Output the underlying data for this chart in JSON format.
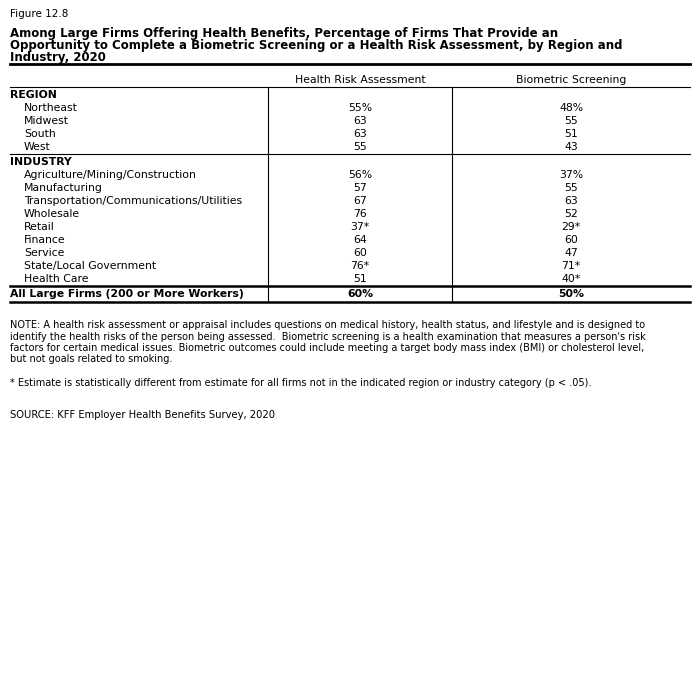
{
  "figure_label": "Figure 12.8",
  "title_lines": [
    "Among Large Firms Offering Health Benefits, Percentage of Firms That Provide an",
    "Opportunity to Complete a Biometric Screening or a Health Risk Assessment, by Region and",
    "Industry, 2020"
  ],
  "col_headers": [
    "Health Risk Assessment",
    "Biometric Screening"
  ],
  "section_region": "REGION",
  "region_rows": [
    {
      "label": "Northeast",
      "hra": "55%",
      "bs": "48%"
    },
    {
      "label": "Midwest",
      "hra": "63",
      "bs": "55"
    },
    {
      "label": "South",
      "hra": "63",
      "bs": "51"
    },
    {
      "label": "West",
      "hra": "55",
      "bs": "43"
    }
  ],
  "section_industry": "INDUSTRY",
  "industry_rows": [
    {
      "label": "Agriculture/Mining/Construction",
      "hra": "56%",
      "bs": "37%"
    },
    {
      "label": "Manufacturing",
      "hra": "57",
      "bs": "55"
    },
    {
      "label": "Transportation/Communications/Utilities",
      "hra": "67",
      "bs": "63"
    },
    {
      "label": "Wholesale",
      "hra": "76",
      "bs": "52"
    },
    {
      "label": "Retail",
      "hra": "37*",
      "bs": "29*"
    },
    {
      "label": "Finance",
      "hra": "64",
      "bs": "60"
    },
    {
      "label": "Service",
      "hra": "60",
      "bs": "47"
    },
    {
      "label": "State/Local Government",
      "hra": "76*",
      "bs": "71*"
    },
    {
      "label": "Health Care",
      "hra": "51",
      "bs": "40*"
    }
  ],
  "total_row": {
    "label": "All Large Firms (200 or More Workers)",
    "hra": "60%",
    "bs": "50%"
  },
  "note_lines": [
    "NOTE: A health risk assessment or appraisal includes questions on medical history, health status, and lifestyle and is designed to",
    "identify the health risks of the person being assessed.  Biometric screening is a health examination that measures a person's risk",
    "factors for certain medical issues. Biometric outcomes could include meeting a target body mass index (BMI) or cholesterol level,",
    "but not goals related to smoking."
  ],
  "footnote": "* Estimate is statistically different from estimate for all firms not in the indicated region or industry category (p < .05).",
  "source": "SOURCE: KFF Employer Health Benefits Survey, 2020",
  "bg_color": "#ffffff",
  "text_color": "#000000"
}
